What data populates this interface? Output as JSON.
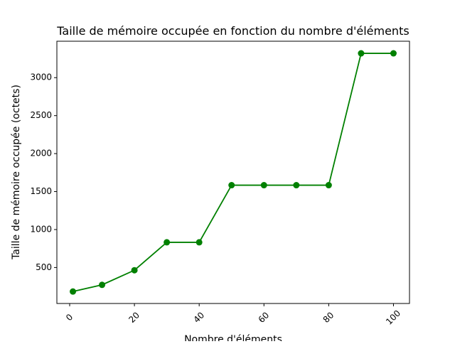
{
  "chart_data": {
    "type": "line",
    "title": "Taille de mémoire occupée en fonction du nombre d'éléments",
    "xlabel": "Nombre d'éléments",
    "ylabel": "Taille de mémoire occupée (octets)",
    "xlim": [
      -3.95,
      104.95
    ],
    "ylim": [
      26.4,
      3479.6
    ],
    "xticks": [
      0,
      20,
      40,
      60,
      80,
      100
    ],
    "yticks": [
      500,
      1000,
      1500,
      2000,
      2500,
      3000
    ],
    "xtick_rotation": 45,
    "grid": false,
    "color": "#008000",
    "series": [
      {
        "x": [
          1,
          10,
          20,
          30,
          40,
          50,
          60,
          70,
          80,
          90,
          100
        ],
        "y": [
          184,
          272,
          464,
          832,
          832,
          1584,
          1584,
          1584,
          1584,
          3320,
          3320
        ]
      }
    ]
  }
}
